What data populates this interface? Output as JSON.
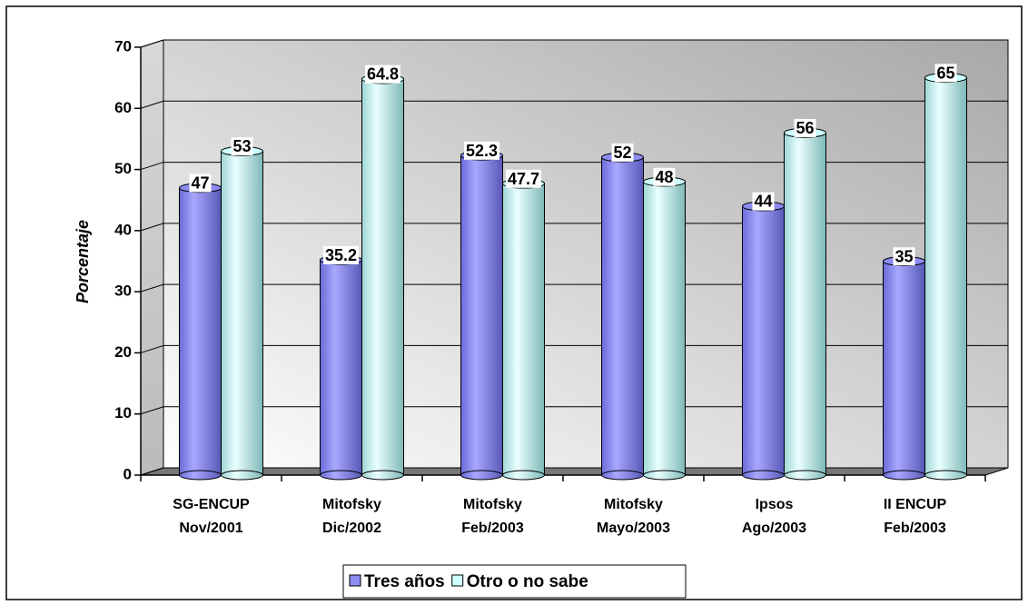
{
  "chart_data": {
    "type": "bar",
    "y_label": "Porcentaje",
    "categories": [
      [
        "SG-ENCUP",
        "Nov/2001"
      ],
      [
        "Mitofsky",
        "Dic/2002"
      ],
      [
        "Mitofsky",
        "Feb/2003"
      ],
      [
        "Mitofsky",
        "Mayo/2003"
      ],
      [
        "Ipsos",
        "Ago/2003"
      ],
      [
        "II ENCUP",
        "Feb/2003"
      ]
    ],
    "series": [
      {
        "name": "Tres años",
        "color": "#8c8cf0",
        "values": [
          47,
          35.2,
          52.3,
          52,
          44,
          35
        ]
      },
      {
        "name": "Otro o no sabe",
        "color": "#ccffff",
        "values": [
          53,
          64.8,
          47.7,
          48,
          56,
          65
        ]
      }
    ],
    "ylim": [
      0,
      70
    ],
    "yticks": [
      0,
      10,
      20,
      30,
      40,
      50,
      60,
      70
    ],
    "grid": true,
    "legend": "bottom"
  }
}
